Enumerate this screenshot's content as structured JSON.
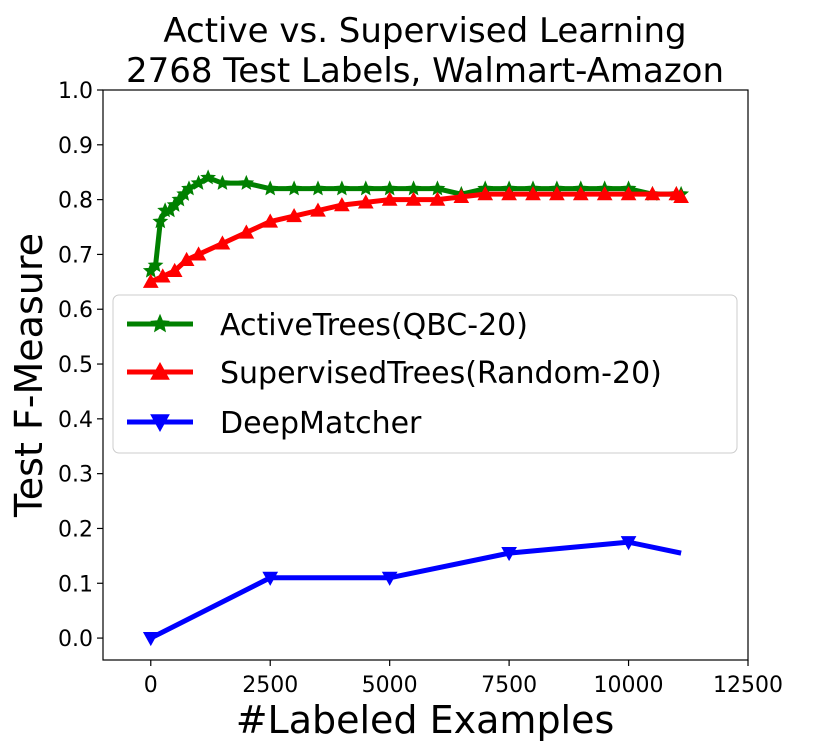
{
  "chart_data": {
    "type": "line",
    "title_line1": "Active vs. Supervised Learning",
    "title_line2": "2768 Test Labels, Walmart-Amazon",
    "xlabel": "#Labeled Examples",
    "ylabel": "Test F-Measure",
    "xlim": [
      -1000,
      12500
    ],
    "ylim": [
      -0.04,
      1.0
    ],
    "xticks": [
      0,
      2500,
      5000,
      7500,
      10000,
      12500
    ],
    "xtick_labels": [
      "0",
      "2500",
      "5000",
      "7500",
      "10000",
      "12500"
    ],
    "yticks": [
      0.0,
      0.1,
      0.2,
      0.3,
      0.4,
      0.5,
      0.6,
      0.7,
      0.8,
      0.9,
      1.0
    ],
    "ytick_labels": [
      "0.0",
      "0.1",
      "0.2",
      "0.3",
      "0.4",
      "0.5",
      "0.6",
      "0.7",
      "0.8",
      "0.9",
      "1.0"
    ],
    "grid": false,
    "legend_position": "center",
    "series": [
      {
        "name": "ActiveTrees(QBC-20)",
        "color": "#008000",
        "marker": "star",
        "x": [
          0,
          100,
          200,
          300,
          400,
          500,
          600,
          700,
          800,
          1000,
          1200,
          1500,
          2000,
          2500,
          3000,
          3500,
          4000,
          4500,
          5000,
          5500,
          6000,
          6500,
          7000,
          7500,
          8000,
          8500,
          9000,
          9500,
          10000,
          10500,
          11000,
          11100
        ],
        "y": [
          0.67,
          0.68,
          0.76,
          0.78,
          0.78,
          0.79,
          0.8,
          0.81,
          0.82,
          0.83,
          0.84,
          0.83,
          0.83,
          0.82,
          0.82,
          0.82,
          0.82,
          0.82,
          0.82,
          0.82,
          0.82,
          0.81,
          0.82,
          0.82,
          0.82,
          0.82,
          0.82,
          0.82,
          0.82,
          0.81,
          0.81,
          0.81
        ]
      },
      {
        "name": "SupervisedTrees(Random-20)",
        "color": "#ff0000",
        "marker": "triangle-up",
        "x": [
          0,
          250,
          500,
          750,
          1000,
          1500,
          2000,
          2500,
          3000,
          3500,
          4000,
          4500,
          5000,
          5500,
          6000,
          6500,
          7000,
          7500,
          8000,
          8500,
          9000,
          9500,
          10000,
          10500,
          11000,
          11100
        ],
        "y": [
          0.65,
          0.66,
          0.67,
          0.69,
          0.7,
          0.72,
          0.74,
          0.76,
          0.77,
          0.78,
          0.79,
          0.795,
          0.8,
          0.8,
          0.8,
          0.805,
          0.81,
          0.81,
          0.81,
          0.81,
          0.81,
          0.81,
          0.81,
          0.81,
          0.81,
          0.805
        ]
      },
      {
        "name": "DeepMatcher",
        "color": "#0000ff",
        "marker": "triangle-down",
        "x": [
          0,
          2500,
          5000,
          7500,
          10000,
          11100
        ],
        "y": [
          0.0,
          0.11,
          0.11,
          0.155,
          0.175,
          0.155
        ]
      }
    ]
  }
}
